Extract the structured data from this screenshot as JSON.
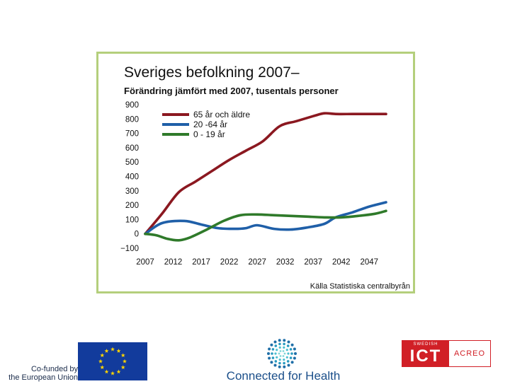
{
  "chart_data": {
    "type": "line",
    "title": "Sveriges befolkning 2007–",
    "subtitle": "Förändring jämfört med 2007, tusentals personer",
    "source": "Källa Statistiska centralbyrån",
    "x_ticks": [
      "2007",
      "2012",
      "2017",
      "2022",
      "2027",
      "2032",
      "2037",
      "2042",
      "2047"
    ],
    "y_ticks": [
      "900",
      "800",
      "700",
      "600",
      "500",
      "400",
      "300",
      "200",
      "100",
      "0",
      "−100"
    ],
    "xlim": [
      2007,
      2050
    ],
    "ylim": [
      -100,
      900
    ],
    "grid": false,
    "legend_position": "top-left",
    "series": [
      {
        "name": "65 år och äldre",
        "color": "#8b1820",
        "x": [
          2007,
          2010,
          2013,
          2016,
          2019,
          2022,
          2025,
          2028,
          2031,
          2034,
          2037,
          2039,
          2041,
          2044,
          2047,
          2050
        ],
        "y": [
          0,
          140,
          290,
          365,
          440,
          515,
          580,
          645,
          750,
          785,
          820,
          840,
          835,
          835,
          835,
          835
        ]
      },
      {
        "name": "20 -64 år",
        "color": "#1f5fa8",
        "x": [
          2007,
          2010,
          2014,
          2017,
          2020,
          2023,
          2025,
          2027,
          2030,
          2033,
          2036,
          2039,
          2041,
          2044,
          2047,
          2050
        ],
        "y": [
          0,
          75,
          90,
          65,
          40,
          35,
          40,
          60,
          35,
          30,
          45,
          70,
          115,
          150,
          190,
          220
        ]
      },
      {
        "name": "0 - 19 år",
        "color": "#2f7a2a",
        "x": [
          2007,
          2009,
          2011,
          2013,
          2015,
          2018,
          2021,
          2024,
          2027,
          2030,
          2033,
          2036,
          2039,
          2042,
          2045,
          2048,
          2050
        ],
        "y": [
          0,
          -10,
          -35,
          -45,
          -25,
          30,
          90,
          130,
          135,
          130,
          125,
          120,
          115,
          115,
          125,
          140,
          160
        ]
      }
    ]
  },
  "logos": {
    "eu_text_line1": "Co-funded by",
    "eu_text_line2": "the European Union",
    "cfh_text": "Connected for Health",
    "ict_small": "SWEDISH",
    "ict_big": "ICT",
    "ict_right": "ACREO"
  }
}
